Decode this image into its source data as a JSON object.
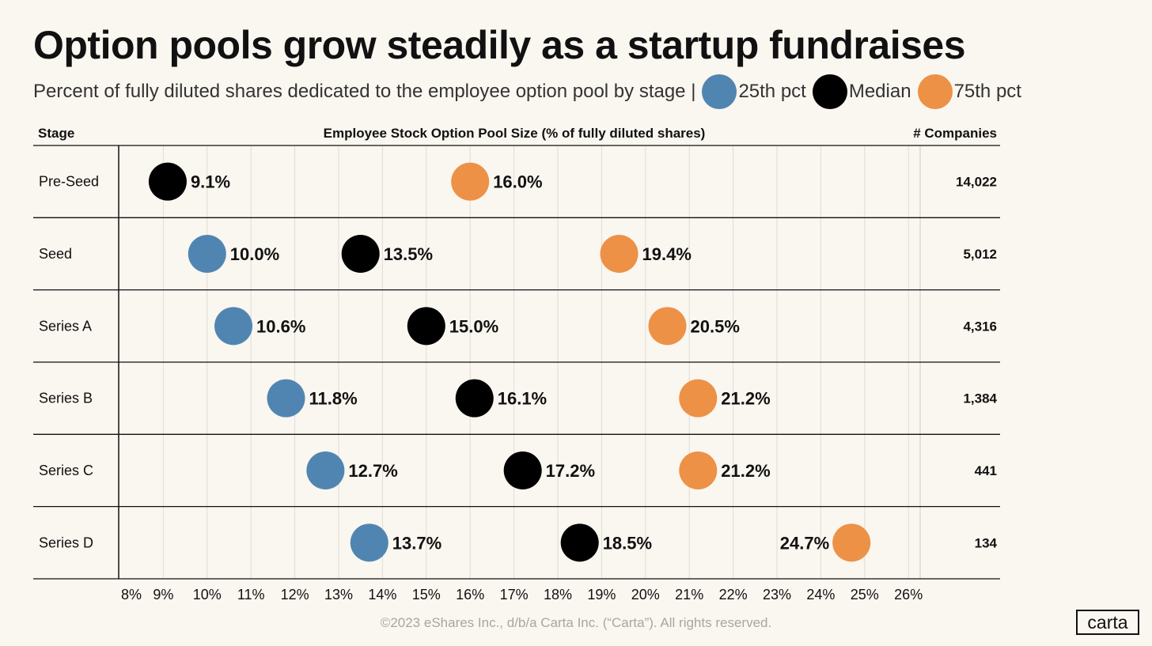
{
  "title": "Option pools grow steadily as a startup fundraises",
  "subtitle": "Percent of fully diluted shares dedicated to the employee option pool by stage |",
  "legend": [
    {
      "label": "25th pct",
      "color": "#5185b1"
    },
    {
      "label": "Median",
      "color": "#000000"
    },
    {
      "label": "75th pct",
      "color": "#ed9146"
    }
  ],
  "headers": {
    "stage": "Stage",
    "axis": "Employee Stock Option Pool Size (% of fully diluted shares)",
    "companies": "# Companies"
  },
  "copyright": "©2023 eShares Inc., d/b/a Carta Inc. (“Carta”). All rights reserved.",
  "logo": "carta",
  "chart_data": {
    "type": "scatter",
    "title": "Option pools grow steadily as a startup fundraises",
    "xlabel": "Employee Stock Option Pool Size (% of fully diluted shares)",
    "xlim": [
      8,
      26
    ],
    "x_ticks": [
      "8%",
      "9%",
      "10%",
      "11%",
      "12%",
      "13%",
      "14%",
      "15%",
      "16%",
      "17%",
      "18%",
      "19%",
      "20%",
      "21%",
      "22%",
      "23%",
      "24%",
      "25%",
      "26%"
    ],
    "grid": true,
    "legend_position": "top (in subtitle)",
    "categories": [
      "Pre-Seed",
      "Seed",
      "Series A",
      "Series B",
      "Series C",
      "Series D"
    ],
    "series": [
      {
        "name": "25th pct",
        "color": "#5185b1",
        "values": [
          null,
          10.0,
          10.6,
          11.8,
          12.7,
          13.7
        ],
        "labels": [
          "",
          "10.0%",
          "10.6%",
          "11.8%",
          "12.7%",
          "13.7%"
        ]
      },
      {
        "name": "Median",
        "color": "#000000",
        "values": [
          9.1,
          13.5,
          15.0,
          16.1,
          17.2,
          18.5
        ],
        "labels": [
          "9.1%",
          "13.5%",
          "15.0%",
          "16.1%",
          "17.2%",
          "18.5%"
        ]
      },
      {
        "name": "75th pct",
        "color": "#ed9146",
        "values": [
          16.0,
          19.4,
          20.5,
          21.2,
          21.2,
          24.7
        ],
        "labels": [
          "16.0%",
          "19.4%",
          "20.5%",
          "21.2%",
          "21.2%",
          "24.7%"
        ]
      }
    ],
    "companies": [
      "14,022",
      "5,012",
      "4,316",
      "1,384",
      "441",
      "134"
    ]
  }
}
